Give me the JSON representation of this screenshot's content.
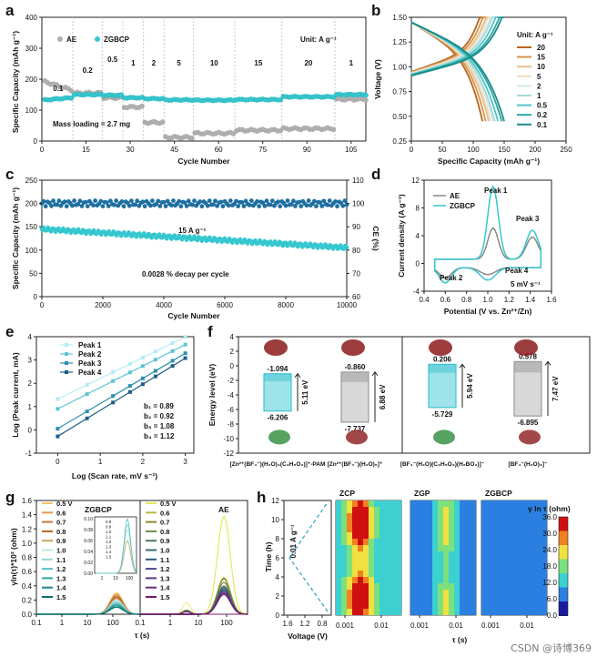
{
  "watermark": "CSDN @诗博369",
  "chart_data": [
    {
      "id": "a",
      "panel": "a",
      "type": "scatter",
      "xlabel": "Cycle Number",
      "ylabel": "Specific Capacity (mAh g⁻¹)",
      "xlim": [
        0,
        110
      ],
      "ylim": [
        0,
        400
      ],
      "xticks": [
        "0",
        "15",
        "30",
        "45",
        "60",
        "75",
        "90",
        "105"
      ],
      "yticks": [
        "0",
        "100",
        "200",
        "300",
        "400"
      ],
      "unit_label": "Unit: A g⁻¹",
      "mass_loading": "Mass loading = 2.7 mg",
      "rate_labels": [
        "0.1",
        "0.2",
        "0.5",
        "1",
        "2",
        "5",
        "10",
        "15",
        "20",
        "1"
      ],
      "series": [
        {
          "name": "AE",
          "color": "#b0b0b0",
          "segments": [
            [
              1,
              10,
              165
            ],
            [
              11,
              20,
              155
            ],
            [
              21,
              27,
              140
            ],
            [
              28,
              34,
              110
            ],
            [
              35,
              41,
              60
            ],
            [
              42,
              51,
              12
            ],
            [
              52,
              65,
              25
            ],
            [
              66,
              81,
              35
            ],
            [
              82,
              99,
              40
            ],
            [
              100,
              110,
              135
            ]
          ]
        },
        {
          "name": "ZGBCP",
          "color": "#35c7cf",
          "segments": [
            [
              1,
              10,
              140
            ],
            [
              11,
              20,
              150
            ],
            [
              21,
              27,
              148
            ],
            [
              28,
              34,
              140
            ],
            [
              35,
              41,
              137
            ],
            [
              42,
              51,
              133
            ],
            [
              52,
              65,
              132
            ],
            [
              66,
              81,
              134
            ],
            [
              82,
              99,
              143
            ],
            [
              100,
              110,
              150
            ]
          ]
        }
      ]
    },
    {
      "id": "b",
      "panel": "b",
      "type": "line",
      "xlabel": "Specific Capacity (mAh g⁻¹)",
      "ylabel": "Voltage (V)",
      "xlim": [
        0,
        250
      ],
      "ylim": [
        0.25,
        1.5
      ],
      "xticks": [
        "0",
        "50",
        "100",
        "150",
        "200",
        "250"
      ],
      "yticks": [
        "0.25",
        "0.50",
        "0.75",
        "1.00",
        "1.25",
        "1.50"
      ],
      "legend_title": "Unit: A g⁻¹",
      "series": [
        {
          "name": "20",
          "color": "#b5651d",
          "cap": 115
        },
        {
          "name": "15",
          "color": "#d4954a",
          "cap": 120
        },
        {
          "name": "10",
          "color": "#e8c08a",
          "cap": 125
        },
        {
          "name": "5",
          "color": "#f0dcc0",
          "cap": 128
        },
        {
          "name": "2",
          "color": "#cfe8e8",
          "cap": 132
        },
        {
          "name": "1",
          "color": "#a8dada",
          "cap": 135
        },
        {
          "name": "0.5",
          "color": "#4fc4c4",
          "cap": 140
        },
        {
          "name": "0.2",
          "color": "#2ca6a6",
          "cap": 146
        },
        {
          "name": "0.1",
          "color": "#1a8a8a",
          "cap": 150
        }
      ]
    },
    {
      "id": "c",
      "panel": "c",
      "type": "scatter",
      "xlabel": "Cycle Number",
      "ylabel": "Specific Capacity (mAh g⁻¹)",
      "y2label": "CE (%)",
      "xlim": [
        0,
        10000
      ],
      "ylim": [
        0,
        250
      ],
      "y2lim": [
        60,
        110
      ],
      "xticks": [
        "0",
        "2000",
        "4000",
        "6000",
        "8000",
        "10000"
      ],
      "yticks": [
        "0",
        "50",
        "100",
        "150",
        "200",
        "250"
      ],
      "y2ticks": [
        "60",
        "70",
        "80",
        "90",
        "100",
        "110"
      ],
      "annotation_rate": "15 A g⁻¹",
      "annotation_decay": "0.0028 % decay per cycle",
      "capacity_start": 145,
      "capacity_end": 105,
      "ce": 100
    },
    {
      "id": "d",
      "panel": "d",
      "type": "line",
      "xlabel": "Potential (V vs. Zn²⁺/Zn)",
      "ylabel": "Current density (A g⁻¹)",
      "xlim": [
        0.4,
        1.6
      ],
      "ylim": [
        -4,
        12
      ],
      "xticks": [
        "0.4",
        "0.6",
        "0.8",
        "1.0",
        "1.2",
        "1.4",
        "1.6"
      ],
      "yticks": [
        "-4",
        "0",
        "4",
        "8",
        "12"
      ],
      "scan_rate": "5 mV s⁻¹",
      "peaks": [
        "Peak 1",
        "Peak 2",
        "Peak 3",
        "Peak 4"
      ],
      "series": [
        {
          "name": "AE",
          "color": "#888888"
        },
        {
          "name": "ZGBCP",
          "color": "#35c7cf"
        }
      ]
    },
    {
      "id": "e",
      "panel": "e",
      "type": "scatter",
      "xlabel": "Log (Scan rate, mV s⁻¹)",
      "ylabel": "Log (Peak current, mA)",
      "xlim": [
        -0.5,
        3.2
      ],
      "ylim": [
        -1,
        4
      ],
      "xticks": [
        "0",
        "1",
        "2",
        "3"
      ],
      "yticks": [
        "-1",
        "0",
        "1",
        "2",
        "3",
        "4"
      ],
      "b_values": [
        "b₁ = 0.89",
        "b₂ = 0.92",
        "b₃ = 1.08",
        "b₄ = 1.12"
      ],
      "series": [
        {
          "name": "Peak 1",
          "color": "#b3ecf0",
          "intercept": 1.32,
          "slope": 0.89
        },
        {
          "name": "Peak 2",
          "color": "#5cc4d4",
          "intercept": 0.9,
          "slope": 0.92
        },
        {
          "name": "Peak 3",
          "color": "#2d8fae",
          "intercept": 0.05,
          "slope": 1.08
        },
        {
          "name": "Peak 4",
          "color": "#1c5f86",
          "intercept": -0.28,
          "slope": 1.12
        }
      ],
      "x": [
        0,
        0.69,
        1.3,
        1.7,
        2.0,
        2.3,
        2.7,
        3.0
      ]
    },
    {
      "id": "f",
      "panel": "f",
      "type": "diagram",
      "ylabel": "Energy level (eV)",
      "ylim": [
        -12,
        4
      ],
      "yticks": [
        "-12",
        "-10",
        "-8",
        "-6",
        "-4",
        "-2",
        "0",
        "2",
        "4"
      ],
      "columns": [
        {
          "label": "[Zn²⁺(BF₄⁻)(H₂O)₄(C₃H₅O₃)]⁺-PAM",
          "lumo": "-1.094",
          "homo": "-6.206",
          "gap": "5.11 eV",
          "color": "#40c4d0",
          "lumo_v": -1.094,
          "homo_v": -6.206
        },
        {
          "label": "[Zn²⁺(BF₄⁻)(H₂O)₅]⁺",
          "lumo": "-0.860",
          "homo": "-7.737",
          "gap": "6.88 eV",
          "color": "#999999",
          "lumo_v": -0.86,
          "homo_v": -7.737
        },
        {
          "label": "[BF₄⁻(H₂O)(C₃H₅O₃)(H₂BO₃)]⁻",
          "lumo": "0.206",
          "homo": "-5.729",
          "gap": "5.94 eV",
          "color": "#40c4d0",
          "lumo_v": 0.206,
          "homo_v": -5.729
        },
        {
          "label": "[BF₄⁻(H₂O)₃]⁻",
          "lumo": "0.578",
          "homo": "-6.895",
          "gap": "7.47 eV",
          "color": "#999999",
          "lumo_v": 0.578,
          "homo_v": -6.895
        }
      ]
    },
    {
      "id": "g",
      "panel": "g",
      "type": "line",
      "xlabel": "τ (s)",
      "ylabel": "γln(τ)*10³ (ohm)",
      "ylim": [
        0,
        1.6
      ],
      "yticks": [
        "0.0",
        "0.2",
        "0.4",
        "0.6",
        "0.8",
        "1.0",
        "1.2",
        "1.4",
        "1.6"
      ],
      "xticks": [
        "0.1",
        "1",
        "10",
        "100",
        "0.1",
        "1",
        "10",
        "100"
      ],
      "sub_titles": [
        "ZGBCP",
        "AE"
      ],
      "voltages": [
        "0.5 V",
        "0.6",
        "0.7",
        "0.8",
        "0.9",
        "1.0",
        "1.1",
        "1.2",
        "1.3",
        "1.4",
        "1.5"
      ],
      "inset_yticks": [
        "0.00",
        "0.02",
        "0.04",
        "0.06",
        "0.08",
        "0.10"
      ],
      "inset_xticks": [
        "1",
        "10",
        "100"
      ],
      "inset_legend": [
        "0.8",
        "0.9",
        "1.0",
        "1.1",
        "1.2",
        "1.3",
        "1.4",
        "1.5"
      ],
      "zgbcp_colors": [
        "#f5c26b",
        "#e29b4c",
        "#c6773b",
        "#b5621f",
        "#c9a05b",
        "#bfe4e4",
        "#8fd7d7",
        "#55c3c3",
        "#2ca6a6",
        "#1b8989",
        "#0e6c6c"
      ],
      "ae_colors": [
        "#e8e85a",
        "#b8b840",
        "#8a8a30",
        "#6a8a4a",
        "#4a7a5a",
        "#3a6a6a",
        "#2d5a7a",
        "#4a4a8a",
        "#5a3a8a",
        "#6a2a7a",
        "#7a1a6a"
      ],
      "ae_heights": [
        1.38,
        0.52,
        0.5,
        0.45,
        0.4,
        0.38,
        0.36,
        0.34,
        0.32,
        0.3,
        0.28
      ],
      "zgbcp_heights": [
        0.3,
        0.28,
        0.26,
        0.24,
        0.22,
        0.2,
        0.18,
        0.16,
        0.14,
        0.12,
        0.1
      ]
    },
    {
      "id": "h",
      "panel": "h",
      "type": "heatmap",
      "xlabel": "τ (s)",
      "voltage_xlabel": "Voltage (V)",
      "time_ylabel": "Time (h)",
      "time_yticks": [
        "0",
        "2",
        "4",
        "6",
        "8",
        "10",
        "12"
      ],
      "voltage_xticks": [
        "1.6",
        "1.2",
        "0.8"
      ],
      "tau_xticks": [
        "0.001",
        "0.01"
      ],
      "rate_note": "0.01 A g⁻¹",
      "maps": [
        "ZCP",
        "ZGP",
        "ZGBCP"
      ],
      "colorbar_title": "γ ln τ (ohm)",
      "colorbar_ticks": [
        "0.0",
        "6.0",
        "12.0",
        "18.0",
        "24.0",
        "30.0",
        "36.0"
      ]
    }
  ]
}
